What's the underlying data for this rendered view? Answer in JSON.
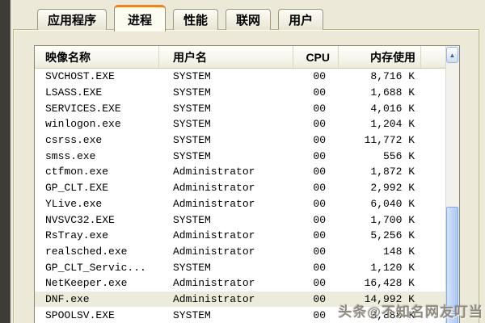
{
  "window": {
    "tabs": [
      {
        "name": "tab-applications",
        "label": "应用程序",
        "active": false
      },
      {
        "name": "tab-processes",
        "label": "进程",
        "active": true
      },
      {
        "name": "tab-performance",
        "label": "性能",
        "active": false
      },
      {
        "name": "tab-networking",
        "label": "联网",
        "active": false
      },
      {
        "name": "tab-users",
        "label": "用户",
        "active": false
      }
    ]
  },
  "process_table": {
    "columns": [
      "映像名称",
      "用户名",
      "CPU",
      "内存使用"
    ],
    "rows": [
      {
        "name": "SVCHOST.EXE",
        "user": "SYSTEM",
        "cpu": "00",
        "mem": "8,716 K",
        "highlighted": false
      },
      {
        "name": "LSASS.EXE",
        "user": "SYSTEM",
        "cpu": "00",
        "mem": "1,688 K",
        "highlighted": false
      },
      {
        "name": "SERVICES.EXE",
        "user": "SYSTEM",
        "cpu": "00",
        "mem": "4,016 K",
        "highlighted": false
      },
      {
        "name": "winlogon.exe",
        "user": "SYSTEM",
        "cpu": "00",
        "mem": "1,204 K",
        "highlighted": false
      },
      {
        "name": "csrss.exe",
        "user": "SYSTEM",
        "cpu": "00",
        "mem": "11,772 K",
        "highlighted": false
      },
      {
        "name": "smss.exe",
        "user": "SYSTEM",
        "cpu": "00",
        "mem": "556 K",
        "highlighted": false
      },
      {
        "name": "ctfmon.exe",
        "user": "Administrator",
        "cpu": "00",
        "mem": "1,872 K",
        "highlighted": false
      },
      {
        "name": "GP_CLT.EXE",
        "user": "Administrator",
        "cpu": "00",
        "mem": "2,992 K",
        "highlighted": false
      },
      {
        "name": "YLive.exe",
        "user": "Administrator",
        "cpu": "00",
        "mem": "6,040 K",
        "highlighted": false
      },
      {
        "name": "NVSVC32.EXE",
        "user": "SYSTEM",
        "cpu": "00",
        "mem": "1,700 K",
        "highlighted": false
      },
      {
        "name": "RsTray.exe",
        "user": "Administrator",
        "cpu": "00",
        "mem": "5,256 K",
        "highlighted": false
      },
      {
        "name": "realsched.exe",
        "user": "Administrator",
        "cpu": "00",
        "mem": "148 K",
        "highlighted": false
      },
      {
        "name": "GP_CLT_Servic...",
        "user": "SYSTEM",
        "cpu": "00",
        "mem": "1,120 K",
        "highlighted": false
      },
      {
        "name": "NetKeeper.exe",
        "user": "Administrator",
        "cpu": "00",
        "mem": "16,428 K",
        "highlighted": false
      },
      {
        "name": "DNF.exe",
        "user": "Administrator",
        "cpu": "00",
        "mem": "14,992 K",
        "highlighted": true
      },
      {
        "name": "SPOOLSV.EXE",
        "user": "SYSTEM",
        "cpu": "00",
        "mem": "3,888 K",
        "highlighted": false
      }
    ]
  },
  "scrollbar": {
    "up_arrow": "▲"
  },
  "watermark": {
    "brand": "头条",
    "handle": "@不知名网友叮当"
  },
  "colors": {
    "dialog_bg": "#ece9d8",
    "active_tab_accent": "#e0872e",
    "scroll_thumb": "#bed3f6",
    "highlight_row": "#edebdc"
  }
}
